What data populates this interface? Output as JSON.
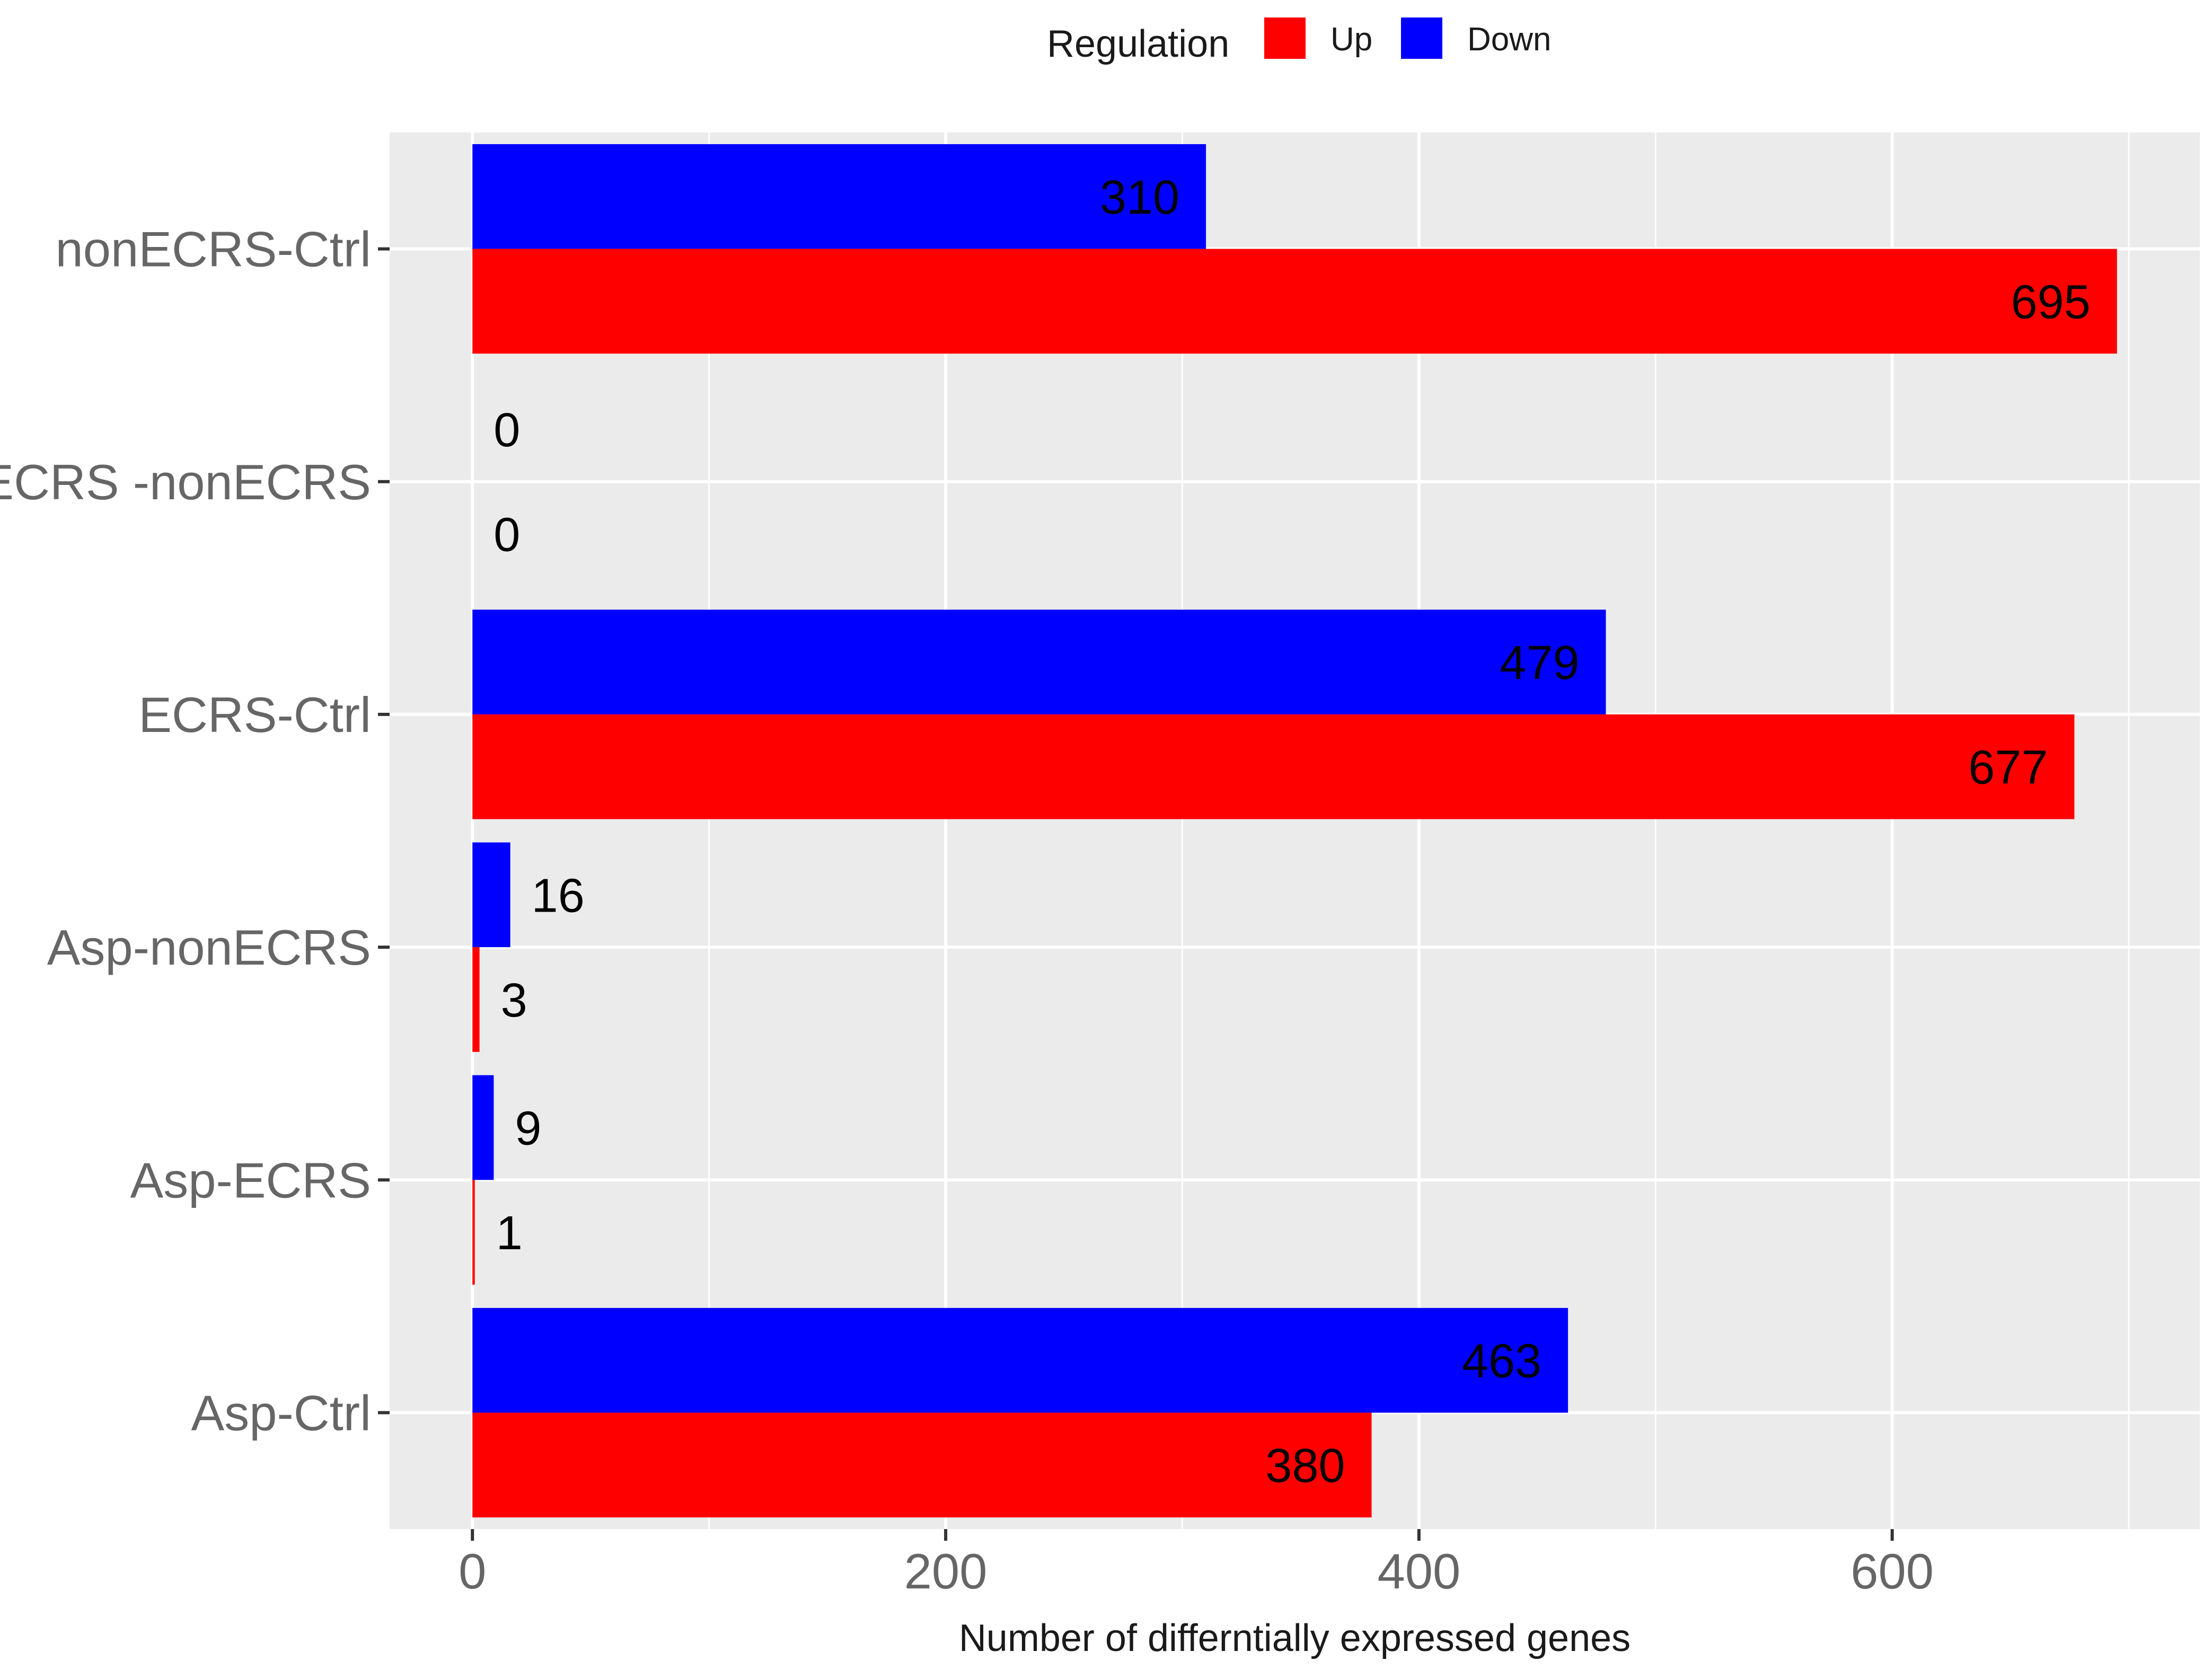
{
  "chart_data": {
    "type": "bar",
    "orientation": "horizontal",
    "title": "",
    "xlabel": "Number of differntially expressed genes",
    "ylabel": "",
    "xlim": [
      -35,
      730
    ],
    "x_ticks": [
      0,
      200,
      400,
      600
    ],
    "categories": [
      "nonECRS-Ctrl",
      "ECRS -nonECRS",
      "ECRS-Ctrl",
      "Asp-nonECRS",
      "Asp-ECRS",
      "Asp-Ctrl"
    ],
    "series": [
      {
        "name": "Down",
        "legend_label": "Down",
        "color": "#0000ff",
        "values": [
          310,
          0,
          479,
          16,
          9,
          463
        ]
      },
      {
        "name": "Up",
        "legend_label": "Up",
        "color": "#ff0000",
        "values": [
          695,
          0,
          677,
          3,
          1,
          380
        ]
      }
    ],
    "legend": {
      "title": "Regulation",
      "position": "top",
      "order": [
        "Up",
        "Down"
      ]
    },
    "grid": true,
    "panel_background": "#ebebeb",
    "grid_color": "#ffffff"
  }
}
